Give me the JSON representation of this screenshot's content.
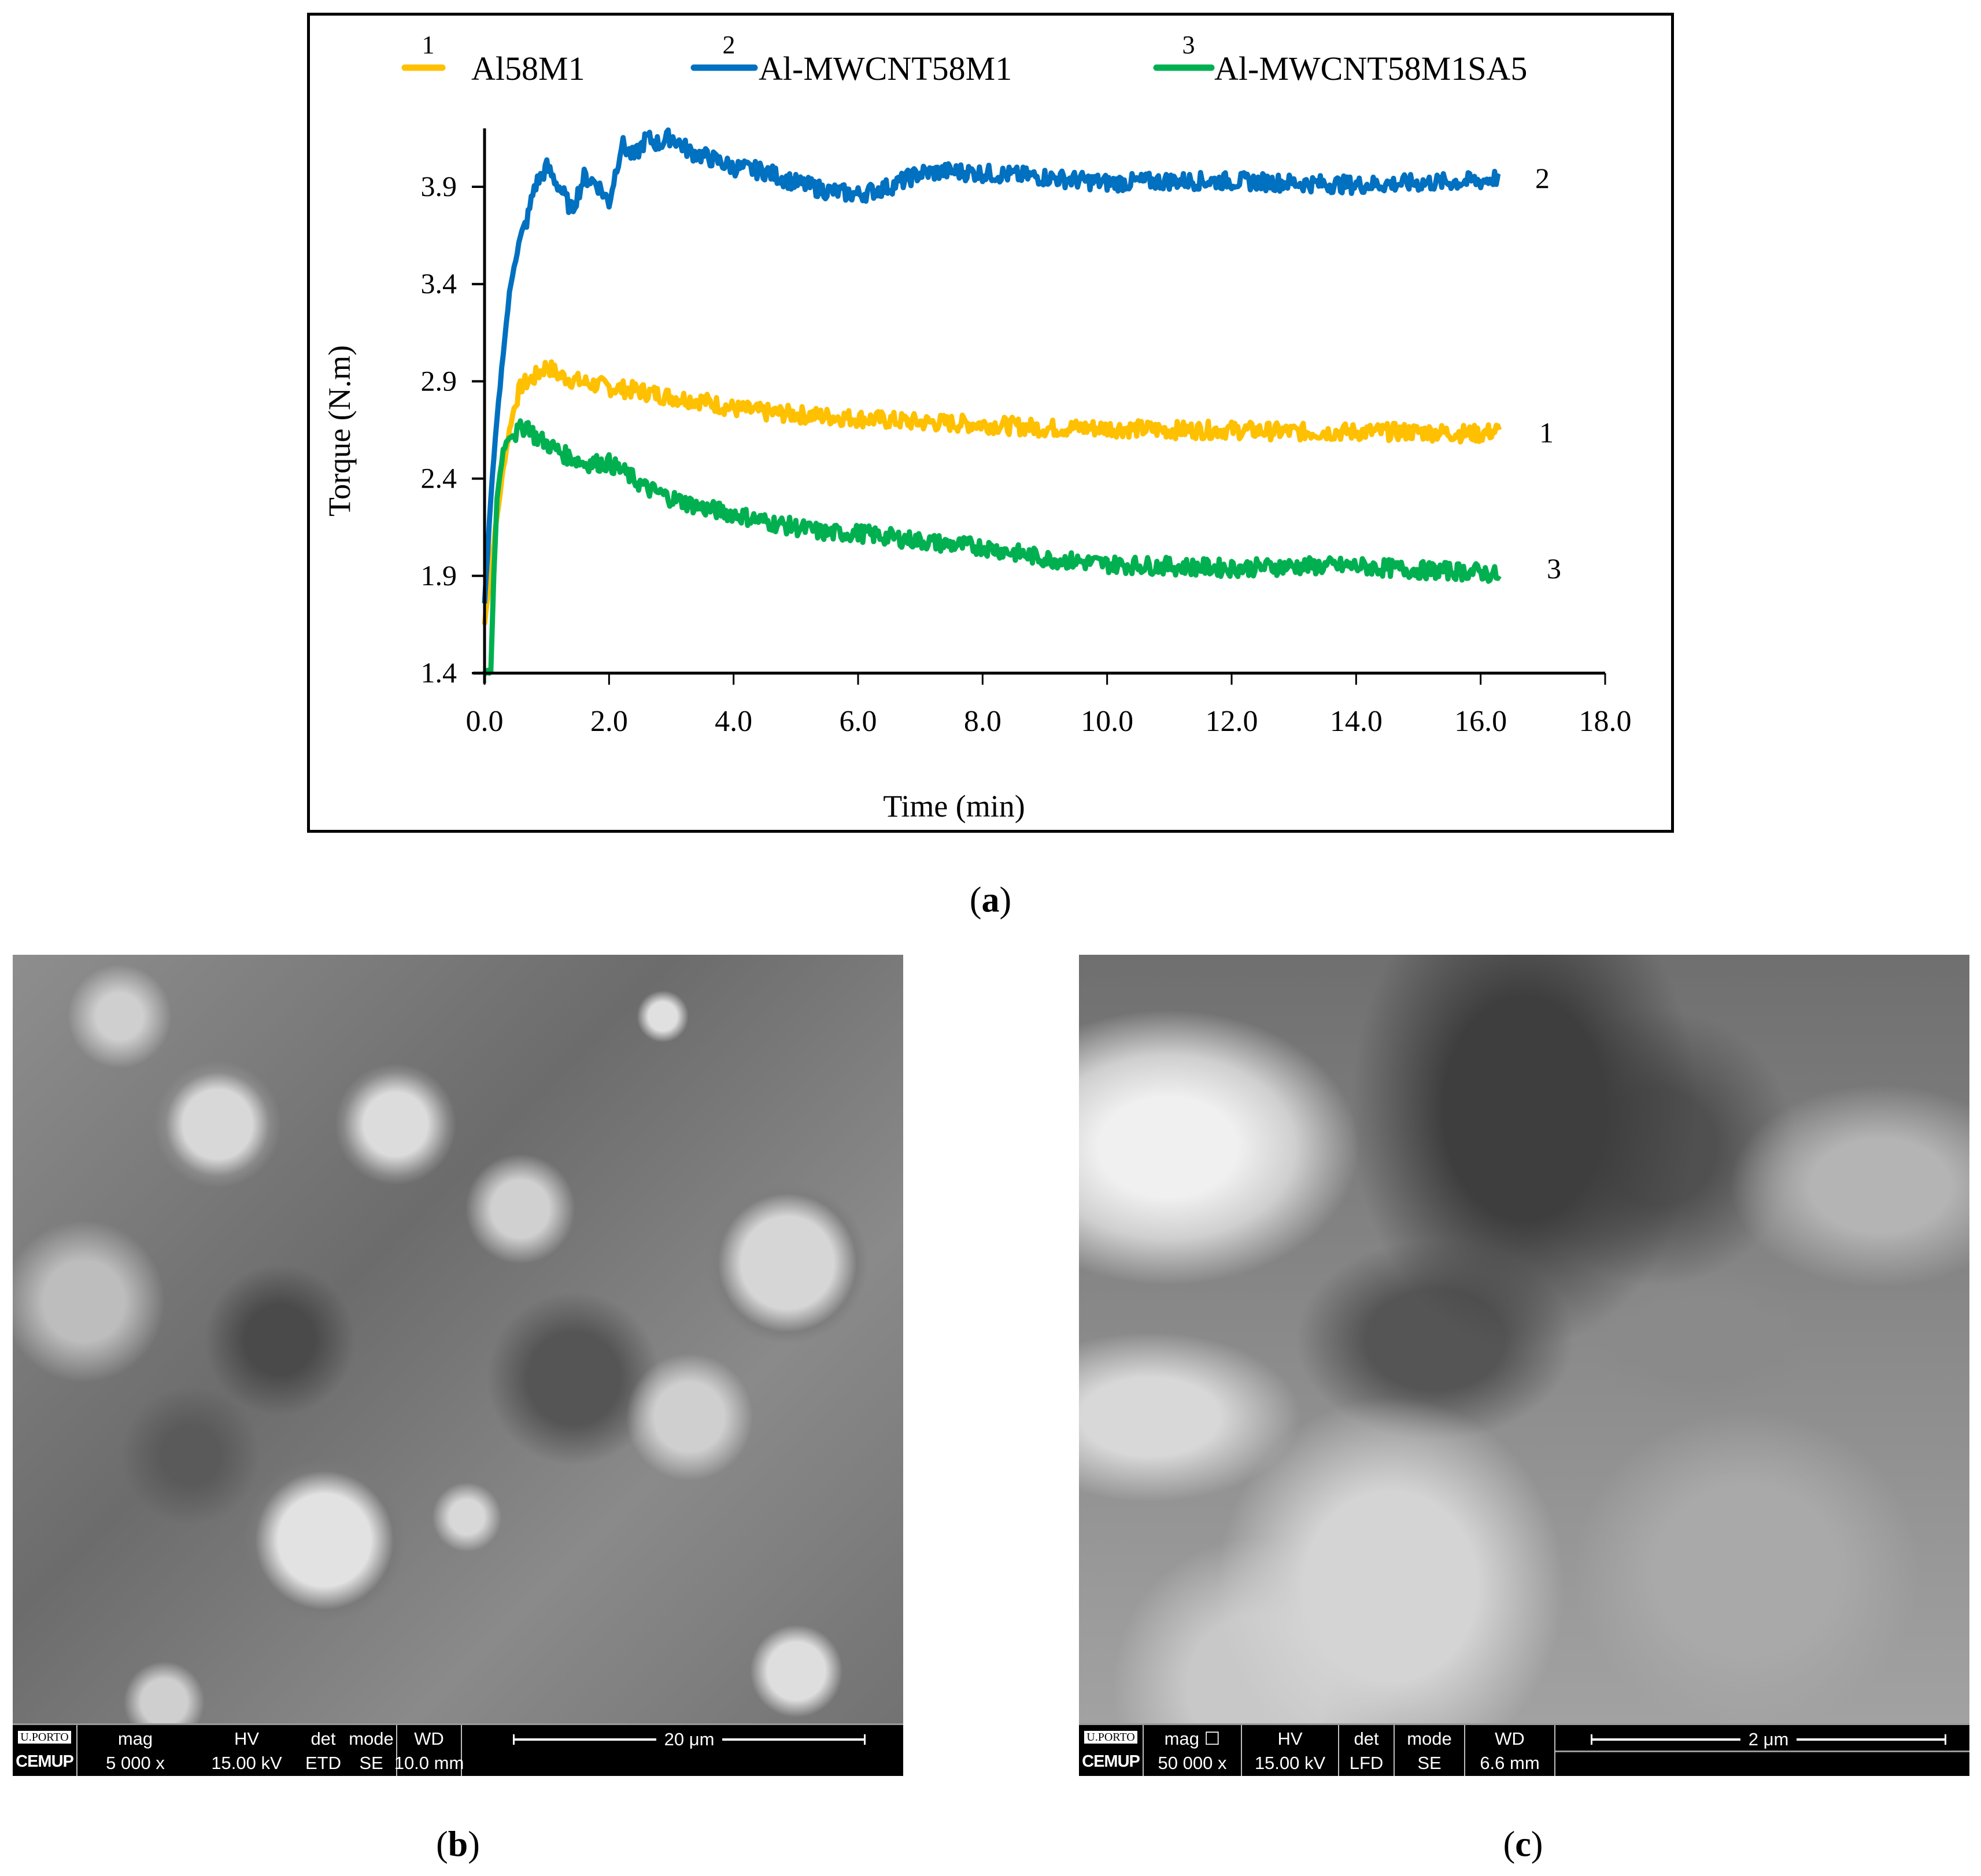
{
  "figure": {
    "panel_a_label": "a",
    "panel_b_label": "b",
    "panel_c_label": "c"
  },
  "colors": {
    "series1": "#FFC000",
    "series2": "#0070C0",
    "series3": "#00B050",
    "axis": "#000000",
    "frame": "#000000"
  },
  "legend": {
    "items": [
      {
        "number": "1",
        "label": "Al58M1",
        "color": "#FFC000"
      },
      {
        "number": "2",
        "label": "Al-MWCNT58M1",
        "color": "#0070C0"
      },
      {
        "number": "3",
        "label": "Al-MWCNT58M1SA5",
        "color": "#00B050"
      }
    ]
  },
  "chart_data": {
    "type": "line",
    "title": "",
    "xlabel": "Time (min)",
    "ylabel": "Torque (N.m)",
    "xlim": [
      0.0,
      18.0
    ],
    "ylim": [
      1.4,
      4.2
    ],
    "xticks": [
      "0.0",
      "2.0",
      "4.0",
      "6.0",
      "8.0",
      "10.0",
      "12.0",
      "14.0",
      "16.0",
      "18.0"
    ],
    "yticks": [
      "1.4",
      "1.9",
      "2.4",
      "2.9",
      "3.4",
      "3.9"
    ],
    "grid": false,
    "legend_position": "top",
    "series_end_labels": [
      "1",
      "2",
      "3"
    ],
    "series": [
      {
        "name": "Al58M1",
        "number": "1",
        "color": "#FFC000",
        "x": [
          0.0,
          0.1,
          0.2,
          0.3,
          0.4,
          0.5,
          0.6,
          0.8,
          1.0,
          1.2,
          1.5,
          2.0,
          2.5,
          3.0,
          3.5,
          4.0,
          4.5,
          5.0,
          5.5,
          6.0,
          7.0,
          8.0,
          9.0,
          10.0,
          11.0,
          12.0,
          13.0,
          14.0,
          15.0,
          16.0,
          16.3
        ],
        "y": [
          1.65,
          1.95,
          2.2,
          2.45,
          2.65,
          2.8,
          2.88,
          2.92,
          2.98,
          2.93,
          2.9,
          2.87,
          2.85,
          2.82,
          2.8,
          2.76,
          2.74,
          2.73,
          2.72,
          2.71,
          2.69,
          2.68,
          2.66,
          2.66,
          2.65,
          2.65,
          2.64,
          2.64,
          2.64,
          2.63,
          2.65
        ]
      },
      {
        "name": "Al-MWCNT58M1",
        "number": "2",
        "color": "#0070C0",
        "x": [
          0.0,
          0.1,
          0.2,
          0.3,
          0.4,
          0.5,
          0.6,
          0.7,
          0.8,
          1.0,
          1.2,
          1.4,
          1.6,
          1.8,
          2.0,
          2.2,
          2.4,
          2.6,
          2.8,
          3.0,
          3.3,
          3.6,
          4.0,
          4.5,
          5.0,
          5.5,
          6.0,
          6.5,
          7.0,
          7.5,
          8.0,
          9.0,
          10.0,
          11.0,
          12.0,
          13.0,
          14.0,
          15.0,
          16.0,
          16.3
        ],
        "y": [
          1.75,
          2.3,
          2.7,
          3.05,
          3.35,
          3.55,
          3.65,
          3.75,
          3.9,
          4.0,
          3.9,
          3.78,
          3.95,
          3.92,
          3.82,
          4.12,
          4.05,
          4.15,
          4.12,
          4.16,
          4.08,
          4.05,
          4.0,
          3.98,
          3.92,
          3.88,
          3.86,
          3.9,
          3.97,
          3.98,
          3.97,
          3.95,
          3.92,
          3.93,
          3.93,
          3.92,
          3.91,
          3.92,
          3.93,
          3.95
        ]
      },
      {
        "name": "Al-MWCNT58M1SA5",
        "number": "3",
        "color": "#00B050",
        "x": [
          0.0,
          0.1,
          0.15,
          0.2,
          0.3,
          0.4,
          0.5,
          0.6,
          0.7,
          0.8,
          1.0,
          1.3,
          1.6,
          2.0,
          2.3,
          2.6,
          3.0,
          3.5,
          4.0,
          4.5,
          5.0,
          5.5,
          6.0,
          6.5,
          7.0,
          7.5,
          8.0,
          8.5,
          9.0,
          10.0,
          11.0,
          12.0,
          13.0,
          14.0,
          15.0,
          16.0,
          16.3
        ],
        "y": [
          1.4,
          1.4,
          1.9,
          2.3,
          2.55,
          2.62,
          2.63,
          2.66,
          2.68,
          2.62,
          2.58,
          2.52,
          2.48,
          2.48,
          2.42,
          2.35,
          2.3,
          2.25,
          2.22,
          2.18,
          2.15,
          2.12,
          2.12,
          2.1,
          2.08,
          2.06,
          2.05,
          2.02,
          1.99,
          1.96,
          1.95,
          1.94,
          1.95,
          1.95,
          1.93,
          1.92,
          1.9
        ]
      }
    ]
  },
  "sem_b": {
    "logo_top": "U.PORTO",
    "logo_bottom": "CEMUP",
    "fields": [
      {
        "header": "mag",
        "value": "5 000 x"
      },
      {
        "header": "HV",
        "value": "15.00 kV"
      },
      {
        "header": "det",
        "value": "ETD"
      },
      {
        "header": "mode",
        "value": "SE"
      },
      {
        "header": "WD",
        "value": "10.0 mm"
      }
    ],
    "scale_bar": "20 μm"
  },
  "sem_c": {
    "logo_top": "U.PORTO",
    "logo_bottom": "CEMUP",
    "fields": [
      {
        "header": "mag ☐",
        "value": "50 000 x"
      },
      {
        "header": "HV",
        "value": "15.00 kV"
      },
      {
        "header": "det",
        "value": "LFD"
      },
      {
        "header": "mode",
        "value": "SE"
      },
      {
        "header": "WD",
        "value": "6.6 mm"
      }
    ],
    "scale_bar": "2 μm"
  }
}
